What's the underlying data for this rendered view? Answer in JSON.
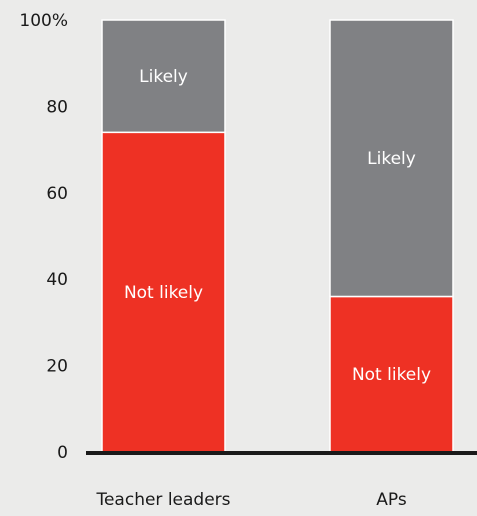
{
  "chart_data": {
    "type": "bar",
    "stacked": true,
    "categories": [
      "Teacher leaders",
      "APs"
    ],
    "series": [
      {
        "name": "Not likely",
        "values": [
          74,
          36
        ],
        "color": "#ee3124"
      },
      {
        "name": "Likely",
        "values": [
          26,
          64
        ],
        "color": "#808184"
      }
    ],
    "ylim": [
      0,
      100
    ],
    "yticks": [
      "0",
      "20",
      "40",
      "60",
      "80",
      "100%"
    ],
    "ytick_values": [
      0,
      20,
      40,
      60,
      80,
      100
    ],
    "grid": false,
    "legend": "none",
    "colors": {
      "background": "#ebebea",
      "axis": "#1a1a1a"
    }
  }
}
